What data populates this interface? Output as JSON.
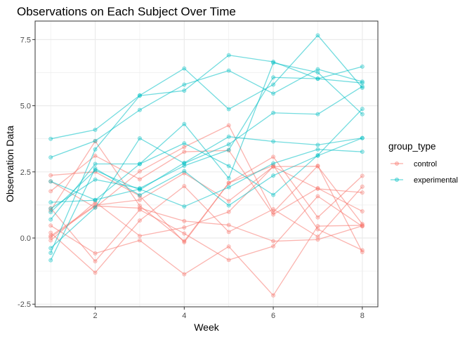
{
  "chart_data": {
    "type": "line",
    "title": "Observations on Each Subject Over Time",
    "xlabel": "Week",
    "ylabel": "Observation Data",
    "xlim": [
      0.65,
      8.35
    ],
    "ylim": [
      -2.6,
      8.2
    ],
    "x_ticks": [
      2,
      4,
      6,
      8
    ],
    "x_tick_labels": [
      "2",
      "4",
      "6",
      "8"
    ],
    "y_ticks": [
      -2.5,
      0,
      2.5,
      5,
      7.5
    ],
    "y_tick_labels": [
      "-2.5",
      "0.0",
      "2.5",
      "5.0",
      "7.5"
    ],
    "grid": true,
    "legend": {
      "title": "group_type",
      "placement": "right",
      "entries": [
        {
          "label": "control",
          "color": "#F8766D"
        },
        {
          "label": "experimental",
          "color": "#00BFC4"
        }
      ]
    },
    "x": [
      1,
      2,
      3,
      4,
      5,
      6,
      7,
      8
    ],
    "series": [
      {
        "group": "control",
        "color": "#F8766D",
        "values": [
          0.2,
          -1.31,
          0.66,
          1.96,
          0.23,
          1.09,
          0.05,
          1.94
        ]
      },
      {
        "group": "control",
        "color": "#F8766D",
        "values": [
          1.13,
          -0.88,
          1.07,
          0.17,
          -0.83,
          -0.31,
          1.58,
          0.44
        ]
      },
      {
        "group": "control",
        "color": "#F8766D",
        "values": [
          1.77,
          3.11,
          2.22,
          3.26,
          3.31,
          0.89,
          1.88,
          1.01
        ]
      },
      {
        "group": "control",
        "color": "#F8766D",
        "values": [
          1.04,
          3.66,
          1.22,
          -0.12,
          2.08,
          2.74,
          0.33,
          -0.46
        ]
      },
      {
        "group": "control",
        "color": "#F8766D",
        "values": [
          0.47,
          -0.58,
          -0.09,
          -1.37,
          -0.32,
          -2.17,
          0.45,
          0.48
        ]
      },
      {
        "group": "control",
        "color": "#F8766D",
        "values": [
          2.37,
          2.5,
          1.59,
          -0.16,
          2.08,
          3.07,
          0.78,
          2.35
        ]
      },
      {
        "group": "control",
        "color": "#F8766D",
        "values": [
          0.03,
          1.21,
          1.13,
          0.64,
          0.49,
          -0.12,
          -0.06,
          0.46
        ]
      },
      {
        "group": "control",
        "color": "#F8766D",
        "values": [
          -0.09,
          1.36,
          0.08,
          0.4,
          0.99,
          2.7,
          1.86,
          1.72
        ]
      },
      {
        "group": "control",
        "color": "#F8766D",
        "values": [
          0.08,
          1.24,
          1.44,
          2.45,
          1.4,
          2.7,
          2.71,
          0.53
        ]
      },
      {
        "group": "control",
        "color": "#F8766D",
        "values": [
          2.14,
          1.15,
          2.52,
          3.44,
          4.26,
          0.97,
          2.73,
          -0.53
        ]
      },
      {
        "group": "experimental",
        "color": "#00BFC4",
        "values": [
          3.05,
          3.67,
          4.84,
          5.8,
          6.33,
          5.46,
          6.38,
          5.91
        ]
      },
      {
        "group": "experimental",
        "color": "#00BFC4",
        "values": [
          -0.84,
          2.63,
          1.62,
          2.53,
          1.23,
          2.36,
          3.11,
          3.78
        ]
      },
      {
        "group": "experimental",
        "color": "#00BFC4",
        "values": [
          2.14,
          1.44,
          1.85,
          1.19,
          1.92,
          2.82,
          3.35,
          3.26
        ]
      },
      {
        "group": "experimental",
        "color": "#00BFC4",
        "values": [
          1.11,
          2.21,
          1.88,
          2.73,
          3.33,
          6.07,
          6.02,
          6.48
        ]
      },
      {
        "group": "experimental",
        "color": "#00BFC4",
        "values": [
          3.75,
          4.09,
          5.39,
          6.41,
          4.87,
          5.8,
          7.66,
          5.68
        ]
      },
      {
        "group": "experimental",
        "color": "#00BFC4",
        "values": [
          1.35,
          1.43,
          2.8,
          3.58,
          2.72,
          1.63,
          3.13,
          4.88
        ]
      },
      {
        "group": "experimental",
        "color": "#00BFC4",
        "values": [
          -0.56,
          3.35,
          5.38,
          5.57,
          6.91,
          6.66,
          6.02,
          5.86
        ]
      },
      {
        "group": "experimental",
        "color": "#00BFC4",
        "values": [
          0.7,
          2.8,
          2.8,
          4.31,
          2.26,
          6.62,
          6.26,
          4.68
        ]
      },
      {
        "group": "experimental",
        "color": "#00BFC4",
        "values": [
          -0.38,
          1.15,
          3.77,
          2.82,
          3.54,
          4.73,
          4.68,
          5.73
        ]
      },
      {
        "group": "experimental",
        "color": "#00BFC4",
        "values": [
          0.98,
          2.56,
          1.82,
          2.84,
          3.83,
          3.65,
          3.52,
          3.78
        ]
      }
    ]
  }
}
